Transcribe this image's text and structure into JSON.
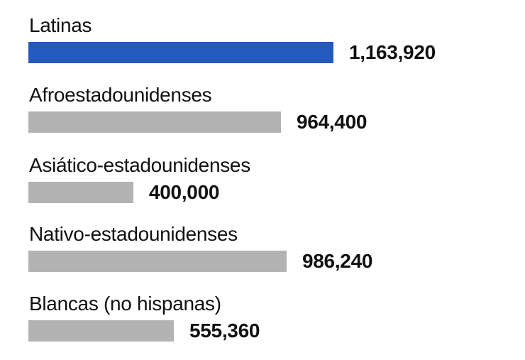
{
  "chart_data": {
    "type": "bar",
    "orientation": "horizontal",
    "title": "",
    "xlabel": "",
    "ylabel": "",
    "grid": false,
    "legend": null,
    "categories": [
      "Latinas",
      "Afroestadounidenses",
      "Asiático-estadounidenses",
      "Nativo-estadounidenses",
      "Blancas (no hispanas)"
    ],
    "values": [
      1163920,
      964400,
      400000,
      986240,
      555360
    ],
    "value_labels": [
      "1,163,920",
      "964,400",
      "400,000",
      "986,240",
      "555,360"
    ],
    "colors": [
      "#2459bf",
      "#b3b3b3",
      "#b3b3b3",
      "#b3b3b3",
      "#b3b3b3"
    ],
    "highlight_category": "Latinas",
    "xlim": [
      0,
      1163920
    ]
  },
  "layout": {
    "bar_left": 40,
    "max_bar_width": 430,
    "row_tops": [
      19,
      117,
      216,
      313,
      411
    ],
    "value_gap": 22
  }
}
